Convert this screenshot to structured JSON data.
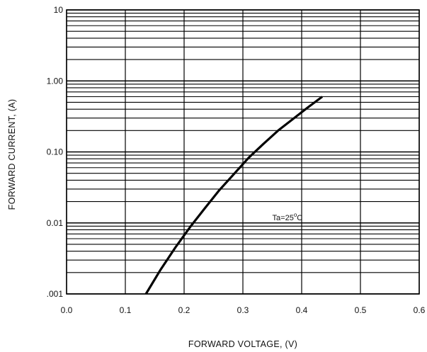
{
  "chart_data": {
    "type": "line",
    "title": "",
    "xlabel": "FORWARD  VOLTAGE, (V)",
    "ylabel": "FORWARD  CURRENT, (A)",
    "x_scale": "linear",
    "y_scale": "log",
    "xlim": [
      0.0,
      0.6
    ],
    "ylim": [
      0.001,
      10
    ],
    "x_ticks": [
      0.0,
      0.1,
      0.2,
      0.3,
      0.4,
      0.5,
      0.6
    ],
    "x_tick_labels": [
      "0.0",
      "0.1",
      "0.2",
      "0.3",
      "0.4",
      "0.5",
      "0.6"
    ],
    "y_ticks": [
      0.001,
      0.01,
      0.1,
      1,
      10
    ],
    "y_tick_labels": [
      ".001",
      "0.01",
      "0.10",
      "1.00",
      "10"
    ],
    "grid": true,
    "annotation": {
      "text": "Ta=25",
      "superscript": "o",
      "suffix": "C",
      "x": 0.33,
      "y": 0.012
    },
    "series": [
      {
        "x": [
          0.135,
          0.16,
          0.185,
          0.21,
          0.235,
          0.26,
          0.285,
          0.31,
          0.335,
          0.36,
          0.385,
          0.41,
          0.435
        ],
        "y": [
          0.001,
          0.0022,
          0.0045,
          0.0087,
          0.016,
          0.029,
          0.049,
          0.083,
          0.13,
          0.2,
          0.29,
          0.42,
          0.6
        ]
      }
    ]
  }
}
